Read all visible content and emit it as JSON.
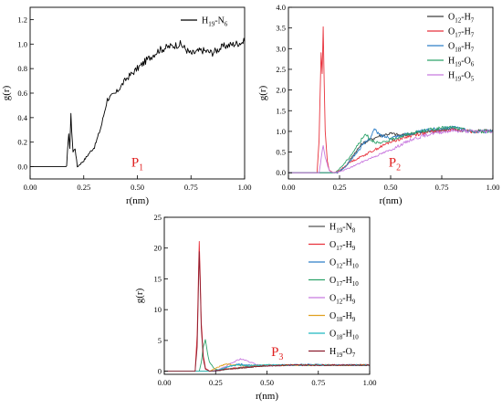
{
  "chart_data": [
    {
      "type": "line",
      "panel_label": "P",
      "panel_label_sub": "1",
      "xlabel": "r(nm)",
      "ylabel": "g(r)",
      "xlim": [
        0.0,
        1.0
      ],
      "ylim": [
        -0.1,
        1.3
      ],
      "xticks": [
        "0.00",
        "0.25",
        "0.50",
        "0.75",
        "1.00"
      ],
      "yticks": [
        "0.0",
        "0.2",
        "0.4",
        "0.6",
        "0.8",
        "1.0",
        "1.2"
      ],
      "grid": false,
      "legend_position": "top-right",
      "series": [
        {
          "name": "H19-N6",
          "label_main": "H",
          "label_sub1": "19",
          "label_mid": "-N",
          "label_sub2": "6",
          "color": "#000000",
          "x": [
            0.0,
            0.17,
            0.18,
            0.185,
            0.19,
            0.2,
            0.21,
            0.22,
            0.25,
            0.28,
            0.3,
            0.33,
            0.36,
            0.4,
            0.45,
            0.5,
            0.55,
            0.6,
            0.65,
            0.7,
            0.75,
            0.8,
            0.85,
            0.9,
            0.95,
            1.0
          ],
          "y": [
            0.0,
            0.0,
            0.28,
            0.15,
            0.42,
            0.12,
            0.15,
            0.0,
            0.05,
            0.12,
            0.16,
            0.32,
            0.55,
            0.6,
            0.72,
            0.8,
            0.88,
            0.95,
            0.98,
            1.0,
            0.92,
            0.95,
            0.93,
            0.98,
            1.0,
            1.02
          ]
        }
      ]
    },
    {
      "type": "line",
      "panel_label": "P",
      "panel_label_sub": "2",
      "xlabel": "r(nm)",
      "ylabel": "g(r)",
      "xlim": [
        0.0,
        1.0
      ],
      "ylim": [
        -0.15,
        4.0
      ],
      "xticks": [
        "0.00",
        "0.25",
        "0.50",
        "0.75",
        "1.00"
      ],
      "yticks": [
        "0.0",
        "0.5",
        "1.0",
        "1.5",
        "2.0",
        "2.5",
        "3.0",
        "3.5",
        "4.0"
      ],
      "grid": false,
      "legend_position": "top-right",
      "series": [
        {
          "name": "O12-H7",
          "label_main": "O",
          "label_sub1": "12",
          "label_mid": "-H",
          "label_sub2": "7",
          "color": "#3d3d3d",
          "x": [
            0.0,
            0.24,
            0.28,
            0.32,
            0.36,
            0.4,
            0.45,
            0.5,
            0.55,
            0.6,
            0.7,
            0.8,
            0.9,
            1.0
          ],
          "y": [
            0.0,
            0.0,
            0.15,
            0.45,
            0.7,
            0.8,
            0.9,
            0.95,
            0.9,
            0.95,
            1.0,
            1.05,
            1.0,
            1.02
          ]
        },
        {
          "name": "O17-H7",
          "label_main": "O",
          "label_sub1": "17",
          "label_mid": "-H",
          "label_sub2": "7",
          "color": "#e8323c",
          "x": [
            0.0,
            0.14,
            0.15,
            0.16,
            0.165,
            0.17,
            0.175,
            0.18,
            0.19,
            0.2,
            0.22,
            0.25,
            0.3,
            0.4,
            0.5,
            0.6,
            0.7,
            0.8,
            0.9,
            1.0
          ],
          "y": [
            0.0,
            0.0,
            0.8,
            2.9,
            2.4,
            3.55,
            2.2,
            1.0,
            0.3,
            0.05,
            0.0,
            0.05,
            0.25,
            0.5,
            0.75,
            0.9,
            1.0,
            1.05,
            1.0,
            1.0
          ]
        },
        {
          "name": "O18-H7",
          "label_main": "O",
          "label_sub1": "18",
          "label_mid": "-H",
          "label_sub2": "7",
          "color": "#2f7fc8",
          "x": [
            0.0,
            0.24,
            0.28,
            0.32,
            0.36,
            0.4,
            0.42,
            0.45,
            0.5,
            0.55,
            0.6,
            0.7,
            0.8,
            0.9,
            1.0
          ],
          "y": [
            0.0,
            0.0,
            0.15,
            0.4,
            0.65,
            0.85,
            1.05,
            0.9,
            0.85,
            0.9,
            0.95,
            1.05,
            1.1,
            1.0,
            1.0
          ]
        },
        {
          "name": "H19-O6",
          "label_main": "H",
          "label_sub1": "19",
          "label_mid": "-O",
          "label_sub2": "6",
          "color": "#2ea36b",
          "x": [
            0.0,
            0.23,
            0.27,
            0.31,
            0.35,
            0.38,
            0.4,
            0.45,
            0.5,
            0.6,
            0.7,
            0.8,
            0.9,
            1.0
          ],
          "y": [
            0.0,
            0.0,
            0.2,
            0.45,
            0.75,
            0.95,
            0.8,
            0.7,
            0.8,
            0.95,
            1.05,
            1.1,
            1.0,
            1.0
          ]
        },
        {
          "name": "H19-O5",
          "label_main": "H",
          "label_sub1": "19",
          "label_mid": "-O",
          "label_sub2": "5",
          "color": "#c87adf",
          "x": [
            0.0,
            0.15,
            0.16,
            0.17,
            0.18,
            0.19,
            0.2,
            0.22,
            0.25,
            0.3,
            0.4,
            0.5,
            0.6,
            0.7,
            0.8,
            0.9,
            1.0
          ],
          "y": [
            0.0,
            0.0,
            0.35,
            0.65,
            0.4,
            0.2,
            0.05,
            0.0,
            0.02,
            0.12,
            0.35,
            0.55,
            0.8,
            0.95,
            1.02,
            1.0,
            1.0
          ]
        }
      ]
    },
    {
      "type": "line",
      "panel_label": "P",
      "panel_label_sub": "3",
      "xlabel": "r(nm)",
      "ylabel": "g(r)",
      "xlim": [
        0.0,
        1.0
      ],
      "ylim": [
        -0.5,
        25.0
      ],
      "xticks": [
        "0.00",
        "0.25",
        "0.50",
        "0.75",
        "1.00"
      ],
      "yticks": [
        "0",
        "5",
        "10",
        "15",
        "20",
        "25"
      ],
      "grid": false,
      "legend_position": "top-right",
      "series": [
        {
          "name": "H19-N8",
          "label_main": "H",
          "label_sub1": "19",
          "label_mid": "-N",
          "label_sub2": "8",
          "color": "#555555",
          "x": [
            0.0,
            0.25,
            0.3,
            0.4,
            0.5,
            0.6,
            0.7,
            0.8,
            0.9,
            1.0
          ],
          "y": [
            0.0,
            0.0,
            0.3,
            0.7,
            0.9,
            1.0,
            1.0,
            1.0,
            1.0,
            1.0
          ]
        },
        {
          "name": "O17-H9",
          "label_main": "O",
          "label_sub1": "17",
          "label_mid": "-H",
          "label_sub2": "9",
          "color": "#e8323c",
          "x": [
            0.0,
            0.15,
            0.16,
            0.17,
            0.175,
            0.18,
            0.19,
            0.2,
            0.22,
            0.25,
            0.3,
            0.4,
            0.5,
            0.6,
            0.8,
            1.0
          ],
          "y": [
            0.0,
            0.0,
            6.0,
            21.0,
            15.0,
            8.0,
            2.5,
            0.5,
            0.0,
            0.1,
            0.4,
            0.7,
            0.9,
            1.0,
            1.0,
            1.0
          ]
        },
        {
          "name": "O12-H10",
          "label_main": "O",
          "label_sub1": "12",
          "label_mid": "-H",
          "label_sub2": "10",
          "color": "#2f7fc8",
          "x": [
            0.0,
            0.24,
            0.28,
            0.32,
            0.36,
            0.4,
            0.45,
            0.5,
            0.6,
            0.7,
            0.8,
            0.9,
            1.0
          ],
          "y": [
            0.0,
            0.0,
            0.4,
            0.8,
            1.2,
            1.0,
            0.9,
            1.0,
            1.0,
            1.1,
            1.0,
            1.0,
            1.0
          ]
        },
        {
          "name": "O17-H10",
          "label_main": "O",
          "label_sub1": "17",
          "label_mid": "-H",
          "label_sub2": "10",
          "color": "#2ea36b",
          "x": [
            0.0,
            0.17,
            0.18,
            0.19,
            0.2,
            0.21,
            0.22,
            0.24,
            0.26,
            0.3,
            0.4,
            0.5,
            0.6,
            0.8,
            1.0
          ],
          "y": [
            0.0,
            0.0,
            1.5,
            4.0,
            5.2,
            3.0,
            1.5,
            0.5,
            0.2,
            0.3,
            0.6,
            0.9,
            1.0,
            1.0,
            1.0
          ]
        },
        {
          "name": "O12-H9",
          "label_main": "O",
          "label_sub1": "12",
          "label_mid": "-H",
          "label_sub2": "9",
          "color": "#c87adf",
          "x": [
            0.0,
            0.25,
            0.28,
            0.31,
            0.34,
            0.37,
            0.4,
            0.43,
            0.46,
            0.5,
            0.6,
            0.7,
            0.8,
            0.9,
            1.0
          ],
          "y": [
            0.0,
            0.0,
            0.5,
            1.0,
            1.5,
            2.0,
            1.7,
            1.3,
            1.0,
            0.9,
            1.0,
            1.0,
            1.0,
            1.0,
            1.0
          ]
        },
        {
          "name": "O18-H9",
          "label_main": "O",
          "label_sub1": "18",
          "label_mid": "-H",
          "label_sub2": "9",
          "color": "#e0a020",
          "x": [
            0.0,
            0.22,
            0.25,
            0.3,
            0.35,
            0.4,
            0.5,
            0.6,
            0.7,
            0.8,
            0.9,
            1.0
          ],
          "y": [
            0.0,
            0.0,
            0.5,
            1.2,
            1.0,
            0.9,
            1.0,
            1.0,
            1.0,
            1.0,
            1.0,
            1.0
          ]
        },
        {
          "name": "O18-H10",
          "label_main": "O",
          "label_sub1": "18",
          "label_mid": "-H",
          "label_sub2": "10",
          "color": "#1fb8c0",
          "x": [
            0.0,
            0.24,
            0.28,
            0.32,
            0.36,
            0.4,
            0.5,
            0.6,
            0.7,
            0.8,
            0.9,
            1.0
          ],
          "y": [
            0.0,
            0.0,
            0.4,
            0.8,
            1.0,
            0.9,
            1.0,
            1.0,
            1.0,
            1.0,
            1.0,
            1.0
          ]
        },
        {
          "name": "H19-O7",
          "label_main": "H",
          "label_sub1": "19",
          "label_mid": "-O",
          "label_sub2": "7",
          "color": "#8b1e2f",
          "x": [
            0.0,
            0.15,
            0.16,
            0.17,
            0.175,
            0.18,
            0.19,
            0.2,
            0.22,
            0.25,
            0.3,
            0.4,
            0.5,
            0.6,
            0.8,
            1.0
          ],
          "y": [
            0.0,
            0.0,
            4.0,
            19.5,
            14.0,
            7.0,
            2.0,
            0.4,
            0.0,
            0.1,
            0.3,
            0.6,
            0.9,
            1.0,
            1.0,
            1.0
          ]
        }
      ]
    }
  ]
}
